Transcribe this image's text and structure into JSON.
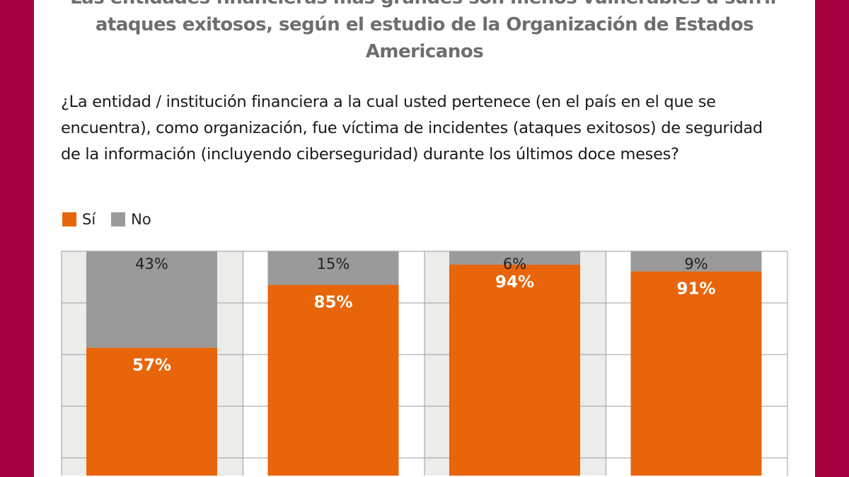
{
  "title": "Las entidades financieras más grandes son menos vulnerables a sufrir ataques exitosos, según el estudio de la Organización de Estados Americanos",
  "question": "¿La entidad / institución financiera a la cual usted pertenece (en el país en el que se encuentra), como organización, fue víctima de incidentes (ataques exitosos) de seguridad de la información (incluyendo ciberseguridad) durante los últimos doce meses?",
  "colors": {
    "frame": "#a4003d",
    "si": "#e8650a",
    "no": "#9a9a9a",
    "alt_bg": "#ececea"
  },
  "chart_data": {
    "type": "bar",
    "stacked": true,
    "categories": [
      "",
      "",
      "",
      ""
    ],
    "series": [
      {
        "name": "Sí",
        "values": [
          57,
          85,
          94,
          91
        ],
        "labels": [
          "57%",
          "85%",
          "94%",
          "91%"
        ]
      },
      {
        "name": "No",
        "values": [
          43,
          15,
          6,
          9
        ],
        "labels": [
          "43%",
          "15%",
          "6%",
          "9%"
        ]
      }
    ],
    "ylim": [
      0,
      100
    ],
    "grid": true,
    "legend": "top-left"
  }
}
